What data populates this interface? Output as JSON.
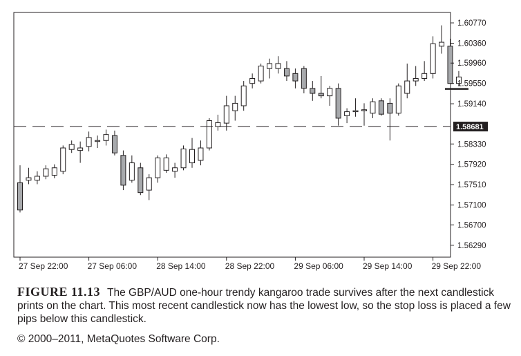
{
  "chart_data": {
    "type": "candlestick",
    "pair": "GBP/AUD",
    "timeframe": "H1",
    "y_ticks": [
      1.6077,
      1.6036,
      1.5996,
      1.5955,
      1.5914,
      1.5833,
      1.5792,
      1.5751,
      1.571,
      1.567,
      1.5629
    ],
    "y_tick_labels": [
      "1.60770",
      "1.60360",
      "1.59960",
      "1.59550",
      "1.59140",
      "1.58330",
      "1.57920",
      "1.57510",
      "1.57100",
      "1.56700",
      "1.56290"
    ],
    "ylim": [
      1.5605,
      1.6098
    ],
    "current_price_label": "1.58681",
    "current_price": 1.58681,
    "x_tick_labels": [
      "27 Sep 22:00",
      "27 Sep 06:00",
      "28 Sep 14:00",
      "28 Sep 22:00",
      "29 Sep 06:00",
      "29 Sep 14:00",
      "29 Sep 22:00"
    ],
    "x_tick_indices": [
      0,
      8,
      16,
      24,
      32,
      40,
      48
    ],
    "stop_loss_level": 1.5944,
    "candles": [
      {
        "o": 1.5755,
        "h": 1.579,
        "l": 1.5695,
        "c": 1.57
      },
      {
        "o": 1.576,
        "h": 1.5785,
        "l": 1.5752,
        "c": 1.5765
      },
      {
        "o": 1.576,
        "h": 1.5778,
        "l": 1.5752,
        "c": 1.5768
      },
      {
        "o": 1.5768,
        "h": 1.579,
        "l": 1.5762,
        "c": 1.5783
      },
      {
        "o": 1.577,
        "h": 1.5792,
        "l": 1.5764,
        "c": 1.5785
      },
      {
        "o": 1.5778,
        "h": 1.583,
        "l": 1.5772,
        "c": 1.5825
      },
      {
        "o": 1.5822,
        "h": 1.584,
        "l": 1.5815,
        "c": 1.5832
      },
      {
        "o": 1.582,
        "h": 1.5838,
        "l": 1.5795,
        "c": 1.5825
      },
      {
        "o": 1.5828,
        "h": 1.5858,
        "l": 1.5818,
        "c": 1.5846
      },
      {
        "o": 1.5838,
        "h": 1.585,
        "l": 1.5825,
        "c": 1.584
      },
      {
        "o": 1.584,
        "h": 1.5862,
        "l": 1.583,
        "c": 1.5852
      },
      {
        "o": 1.585,
        "h": 1.586,
        "l": 1.581,
        "c": 1.5815
      },
      {
        "o": 1.581,
        "h": 1.582,
        "l": 1.574,
        "c": 1.575
      },
      {
        "o": 1.576,
        "h": 1.581,
        "l": 1.5755,
        "c": 1.5795
      },
      {
        "o": 1.5785,
        "h": 1.5795,
        "l": 1.573,
        "c": 1.5735
      },
      {
        "o": 1.574,
        "h": 1.5772,
        "l": 1.572,
        "c": 1.5765
      },
      {
        "o": 1.5765,
        "h": 1.581,
        "l": 1.5755,
        "c": 1.5805
      },
      {
        "o": 1.578,
        "h": 1.5812,
        "l": 1.5775,
        "c": 1.5805
      },
      {
        "o": 1.5778,
        "h": 1.5795,
        "l": 1.5765,
        "c": 1.5785
      },
      {
        "o": 1.5785,
        "h": 1.583,
        "l": 1.578,
        "c": 1.5823
      },
      {
        "o": 1.5795,
        "h": 1.5845,
        "l": 1.5785,
        "c": 1.5822
      },
      {
        "o": 1.58,
        "h": 1.584,
        "l": 1.579,
        "c": 1.5825
      },
      {
        "o": 1.5825,
        "h": 1.5885,
        "l": 1.582,
        "c": 1.588
      },
      {
        "o": 1.5868,
        "h": 1.5892,
        "l": 1.586,
        "c": 1.5876
      },
      {
        "o": 1.5875,
        "h": 1.593,
        "l": 1.586,
        "c": 1.591
      },
      {
        "o": 1.59,
        "h": 1.593,
        "l": 1.588,
        "c": 1.5915
      },
      {
        "o": 1.591,
        "h": 1.596,
        "l": 1.59,
        "c": 1.595
      },
      {
        "o": 1.5955,
        "h": 1.5975,
        "l": 1.5945,
        "c": 1.5965
      },
      {
        "o": 1.596,
        "h": 1.5995,
        "l": 1.5955,
        "c": 1.599
      },
      {
        "o": 1.5985,
        "h": 1.6005,
        "l": 1.5965,
        "c": 1.5995
      },
      {
        "o": 1.5985,
        "h": 1.601,
        "l": 1.5975,
        "c": 1.5995
      },
      {
        "o": 1.5985,
        "h": 1.6,
        "l": 1.596,
        "c": 1.597
      },
      {
        "o": 1.5975,
        "h": 1.5985,
        "l": 1.5945,
        "c": 1.596
      },
      {
        "o": 1.5985,
        "h": 1.599,
        "l": 1.5935,
        "c": 1.5945
      },
      {
        "o": 1.5945,
        "h": 1.596,
        "l": 1.592,
        "c": 1.5935
      },
      {
        "o": 1.5935,
        "h": 1.597,
        "l": 1.5925,
        "c": 1.593
      },
      {
        "o": 1.593,
        "h": 1.595,
        "l": 1.591,
        "c": 1.5945
      },
      {
        "o": 1.5945,
        "h": 1.5955,
        "l": 1.587,
        "c": 1.5885
      },
      {
        "o": 1.589,
        "h": 1.5905,
        "l": 1.5875,
        "c": 1.5898
      },
      {
        "o": 1.5898,
        "h": 1.5925,
        "l": 1.5888,
        "c": 1.59
      },
      {
        "o": 1.59,
        "h": 1.5915,
        "l": 1.587,
        "c": 1.5902
      },
      {
        "o": 1.5895,
        "h": 1.5925,
        "l": 1.5885,
        "c": 1.5918
      },
      {
        "o": 1.592,
        "h": 1.5925,
        "l": 1.589,
        "c": 1.5893
      },
      {
        "o": 1.5915,
        "h": 1.5925,
        "l": 1.584,
        "c": 1.5895
      },
      {
        "o": 1.5895,
        "h": 1.5955,
        "l": 1.589,
        "c": 1.595
      },
      {
        "o": 1.5935,
        "h": 1.5995,
        "l": 1.5925,
        "c": 1.596
      },
      {
        "o": 1.596,
        "h": 1.599,
        "l": 1.595,
        "c": 1.5965
      },
      {
        "o": 1.5965,
        "h": 1.6,
        "l": 1.596,
        "c": 1.5975
      },
      {
        "o": 1.5975,
        "h": 1.605,
        "l": 1.5965,
        "c": 1.6035
      },
      {
        "o": 1.603,
        "h": 1.6072,
        "l": 1.6015,
        "c": 1.6038
      },
      {
        "o": 1.603,
        "h": 1.6045,
        "l": 1.5955,
        "c": 1.5955
      },
      {
        "o": 1.5955,
        "h": 1.598,
        "l": 1.595,
        "c": 1.5968
      }
    ]
  },
  "caption": {
    "figure_label": "FIGURE 11.13",
    "text": "The GBP/AUD one-hour trendy kangaroo trade survives after the next candlestick prints on the chart. This most recent candlestick now has the lowest low, so the stop loss is placed a few pips below this candlestick.",
    "copyright": "© 2000–2011, MetaQuotes Software Corp."
  },
  "colors": {
    "bull_fill": "#ffffff",
    "bear_fill": "#a7a9ac",
    "outline": "#231f20",
    "dashed_line": "#231f20",
    "price_label_bg": "#231f20",
    "price_label_text": "#ffffff"
  }
}
